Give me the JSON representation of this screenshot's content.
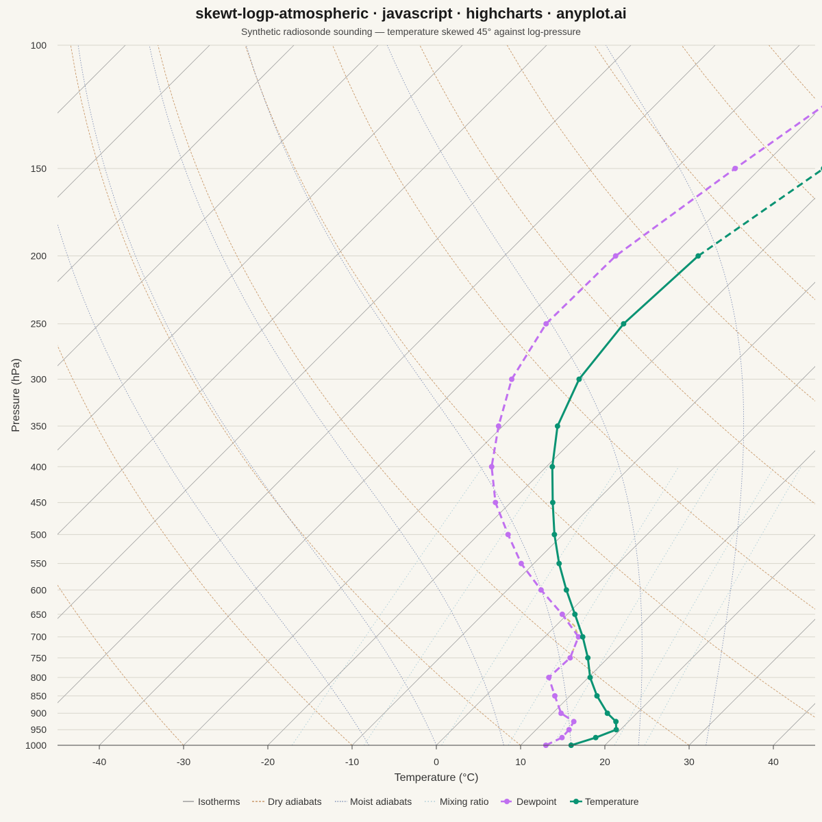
{
  "chart_data": {
    "type": "line",
    "title": "skewt-logp-atmospheric · javascript · highcharts · anyplot.ai",
    "subtitle": "Synthetic radiosonde sounding — temperature skewed 45° against log-pressure",
    "xlabel": "Temperature (°C)",
    "ylabel": "Pressure (hPa)",
    "x_ticks": [
      -40,
      -30,
      -20,
      -10,
      0,
      10,
      20,
      30,
      40
    ],
    "y_ticks": [
      100,
      150,
      200,
      250,
      300,
      350,
      400,
      450,
      500,
      550,
      600,
      650,
      700,
      750,
      800,
      850,
      900,
      950,
      1000
    ],
    "xlim": [
      -45,
      45
    ],
    "ylim": [
      1000,
      100
    ],
    "yscale": "log",
    "skew_angle_deg": 45,
    "grid": true,
    "legend_position": "bottom-center",
    "legend": [
      "Isotherms",
      "Dry adiabats",
      "Moist adiabats",
      "Mixing ratio",
      "Dewpoint",
      "Temperature"
    ],
    "colors": {
      "temperature": "#0a9373",
      "dewpoint": "#c070f0",
      "isotherms": "#9a9a9a",
      "dry_adiabats": "#c9996a",
      "moist_adiabats": "#7f8fb5",
      "mixing_ratio": "#a8ccd6",
      "parcel": "#d6c07a",
      "background": "#f8f6f0"
    },
    "series": [
      {
        "name": "Temperature",
        "pressure": [
          1000,
          975,
          950,
          925,
          900,
          850,
          800,
          750,
          700,
          650,
          600,
          550,
          500,
          450,
          400,
          350,
          300,
          250,
          200,
          150,
          100
        ],
        "temperature": [
          16.0,
          18.0,
          19.5,
          18.5,
          16.5,
          13.2,
          10.2,
          7.6,
          4.5,
          0.9,
          -3.0,
          -7.0,
          -11.0,
          -15.0,
          -19.3,
          -23.5,
          -26.5,
          -27.8,
          -27.0,
          -22.5,
          -16.0
        ]
      },
      {
        "name": "Dewpoint",
        "pressure": [
          1000,
          975,
          950,
          925,
          900,
          850,
          800,
          750,
          700,
          650,
          600,
          550,
          500,
          450,
          400,
          350,
          300,
          250,
          200,
          150,
          100
        ],
        "temperature": [
          13.0,
          14.0,
          13.9,
          13.5,
          11.0,
          8.2,
          5.3,
          5.5,
          4.0,
          -0.6,
          -6.0,
          -11.5,
          -16.5,
          -21.8,
          -26.5,
          -30.5,
          -34.5,
          -37.0,
          -36.8,
          -33.0,
          -27.0
        ]
      }
    ]
  }
}
